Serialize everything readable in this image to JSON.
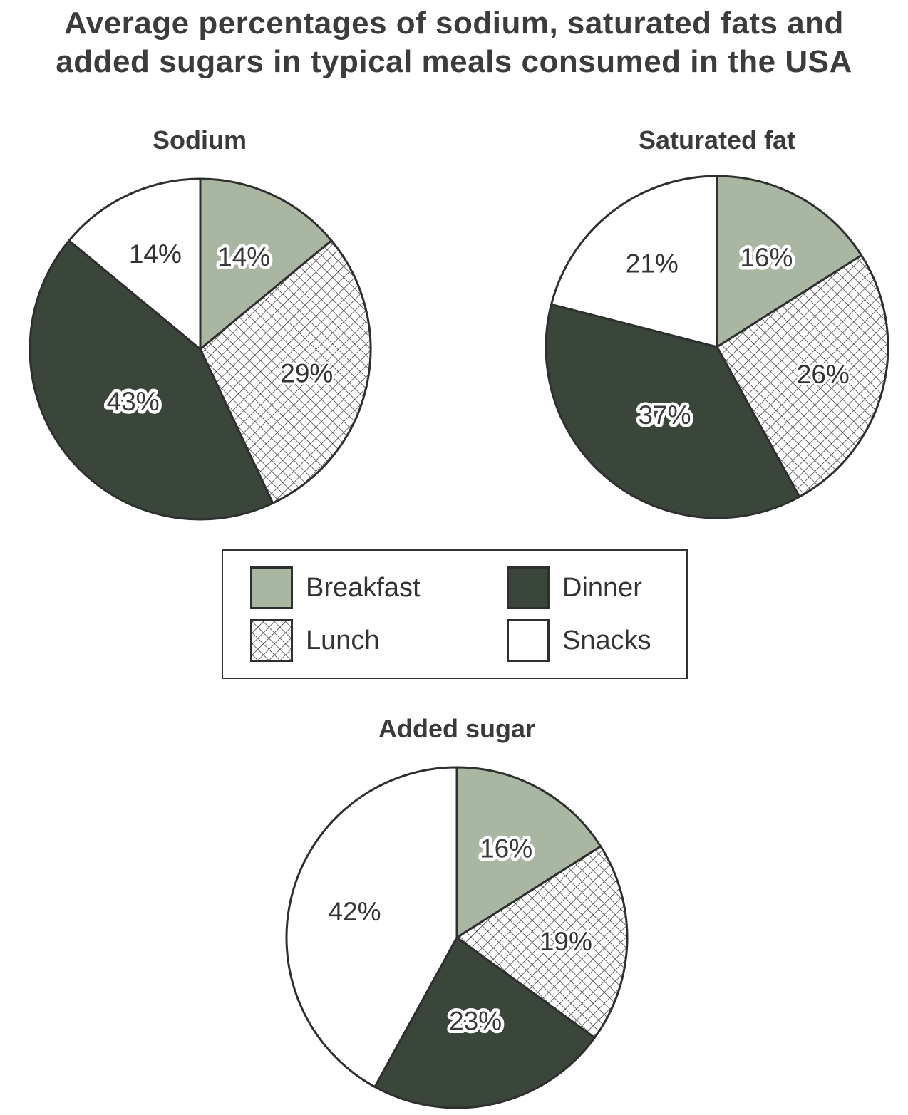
{
  "title_line1": "Average percentages of sodium, saturated fats and",
  "title_line2": "added sugars in typical meals consumed in the USA",
  "colors": {
    "breakfast": "#a9b7a2",
    "lunch_hatch": "#2e2e2e",
    "dinner": "#3a4639",
    "snacks": "#ffffff",
    "outline": "#2f2f2f"
  },
  "legend": [
    {
      "key": "breakfast",
      "label": "Breakfast"
    },
    {
      "key": "dinner",
      "label": "Dinner"
    },
    {
      "key": "lunch",
      "label": "Lunch"
    },
    {
      "key": "snacks",
      "label": "Snacks"
    }
  ],
  "chart_data": [
    {
      "type": "pie",
      "title": "Sodium",
      "slices": [
        {
          "key": "breakfast",
          "label": "Breakfast",
          "value": 14,
          "text": "14%"
        },
        {
          "key": "lunch",
          "label": "Lunch",
          "value": 29,
          "text": "29%"
        },
        {
          "key": "dinner",
          "label": "Dinner",
          "value": 43,
          "text": "43%"
        },
        {
          "key": "snacks",
          "label": "Snacks",
          "value": 14,
          "text": "14%"
        }
      ]
    },
    {
      "type": "pie",
      "title": "Saturated fat",
      "slices": [
        {
          "key": "breakfast",
          "label": "Breakfast",
          "value": 16,
          "text": "16%"
        },
        {
          "key": "lunch",
          "label": "Lunch",
          "value": 26,
          "text": "26%"
        },
        {
          "key": "dinner",
          "label": "Dinner",
          "value": 37,
          "text": "37%"
        },
        {
          "key": "snacks",
          "label": "Snacks",
          "value": 21,
          "text": "21%"
        }
      ]
    },
    {
      "type": "pie",
      "title": "Added sugar",
      "slices": [
        {
          "key": "breakfast",
          "label": "Breakfast",
          "value": 16,
          "text": "16%"
        },
        {
          "key": "lunch",
          "label": "Lunch",
          "value": 19,
          "text": "19%"
        },
        {
          "key": "dinner",
          "label": "Dinner",
          "value": 23,
          "text": "23%"
        },
        {
          "key": "snacks",
          "label": "Snacks",
          "value": 42,
          "text": "42%"
        }
      ]
    }
  ]
}
